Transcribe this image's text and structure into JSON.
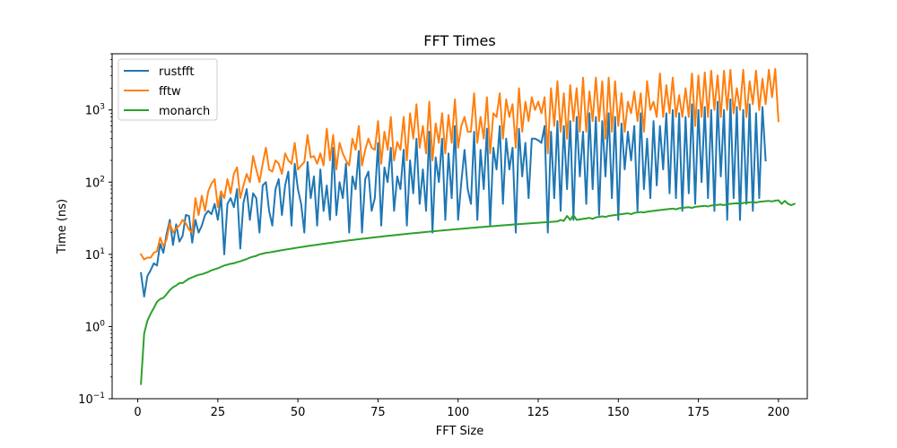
{
  "chart_data": {
    "type": "line",
    "title": "FFT Times",
    "xlabel": "FFT Size",
    "ylabel": "Time (ns)",
    "yscale": "log",
    "xlim": [
      -8,
      209
    ],
    "ylim": [
      0.1,
      6000
    ],
    "xticks": [
      0,
      25,
      50,
      75,
      100,
      125,
      150,
      175,
      200
    ],
    "yticks": [
      {
        "value": 0.1,
        "base": "10",
        "exp": "−1"
      },
      {
        "value": 1,
        "base": "10",
        "exp": "0"
      },
      {
        "value": 10,
        "base": "10",
        "exp": "1"
      },
      {
        "value": 100,
        "base": "10",
        "exp": "2"
      },
      {
        "value": 1000,
        "base": "10",
        "exp": "3"
      }
    ],
    "grid": false,
    "legend_position": "upper-left",
    "x_start": 1,
    "x_step": 1,
    "series": [
      {
        "name": "rustfft",
        "color": "#1f77b4",
        "values": [
          5.5,
          2.6,
          5.0,
          6.0,
          7.5,
          7.0,
          14.0,
          10.5,
          19.0,
          30.0,
          13.5,
          26.0,
          15.0,
          18.0,
          35.0,
          34.0,
          14.5,
          30.0,
          20.0,
          25.0,
          35.0,
          40.0,
          36.0,
          50.0,
          30.0,
          65.0,
          10.0,
          50.0,
          60.0,
          45.0,
          80.0,
          12.0,
          52.0,
          80.0,
          30.0,
          70.0,
          60.0,
          20.0,
          90.0,
          100.0,
          40.0,
          25.0,
          80.0,
          110.0,
          35.0,
          90.0,
          140.0,
          25.0,
          180.0,
          80.0,
          50.0,
          20.0,
          190.0,
          60.0,
          120.0,
          25.0,
          150.0,
          40.0,
          90.0,
          30.0,
          300.0,
          35.0,
          100.0,
          60.0,
          180.0,
          20.0,
          120.0,
          80.0,
          270.0,
          20.0,
          110.0,
          140.0,
          40.0,
          60.0,
          350.0,
          25.0,
          160.0,
          100.0,
          300.0,
          40.0,
          120.0,
          80.0,
          280.0,
          25.0,
          200.0,
          70.0,
          400.0,
          50.0,
          150.0,
          40.0,
          500.0,
          20.0,
          220.0,
          100.0,
          400.0,
          30.0,
          250.0,
          60.0,
          600.0,
          30.0,
          100.0,
          280.0,
          80.0,
          50.0,
          500.0,
          30.0,
          280.0,
          80.0,
          550.0,
          25.0,
          300.0,
          150.0,
          600.0,
          50.0,
          400.0,
          150.0,
          300.0,
          20.0,
          550.0,
          120.0,
          350.0,
          60.0,
          400.0,
          400.0,
          380.0,
          350.0,
          600.0,
          20.0,
          500.0,
          60.0,
          700.0,
          40.0,
          600.0,
          80.0,
          700.0,
          30.0,
          800.0,
          120.0,
          500.0,
          50.0,
          900.0,
          80.0,
          800.0,
          35.0,
          700.0,
          120.0,
          900.0,
          60.0,
          800.0,
          30.0,
          650.0,
          150.0,
          500.0,
          200.0,
          600.0,
          40.0,
          900.0,
          80.0,
          400.0,
          60.0,
          700.0,
          90.0,
          600.0,
          150.0,
          900.0,
          70.0,
          1000.0,
          60.0,
          900.0,
          40.0,
          800.0,
          70.0,
          1200.0,
          50.0,
          1000.0,
          100.0,
          1100.0,
          60.0,
          1000.0,
          40.0,
          1300.0,
          120.0,
          1000.0,
          30.0,
          1400.0,
          60.0,
          1100.0,
          30.0,
          1000.0,
          50.0,
          1200.0,
          40.0,
          900.0,
          60.0,
          1100.0,
          200.0
        ]
      },
      {
        "name": "fftw",
        "color": "#ff7f0e",
        "values": [
          10.0,
          8.5,
          9.0,
          9.0,
          10.5,
          11.0,
          17.0,
          13.0,
          16.0,
          27.0,
          20.0,
          23.0,
          25.0,
          30.0,
          27.0,
          22.0,
          20.0,
          60.0,
          35.0,
          65.0,
          40.0,
          75.0,
          95.0,
          110.0,
          45.0,
          75.0,
          60.0,
          110.0,
          70.0,
          130.0,
          160.0,
          60.0,
          90.0,
          130.0,
          100.0,
          230.0,
          150.0,
          100.0,
          180.0,
          300.0,
          150.0,
          140.0,
          200.0,
          180.0,
          130.0,
          250.0,
          200.0,
          180.0,
          350.0,
          150.0,
          170.0,
          190.0,
          450.0,
          220.0,
          230.0,
          180.0,
          250.0,
          170.0,
          550.0,
          200.0,
          450.0,
          150.0,
          350.0,
          250.0,
          200.0,
          170.0,
          400.0,
          280.0,
          600.0,
          170.0,
          280.0,
          400.0,
          300.0,
          280.0,
          700.0,
          180.0,
          500.0,
          280.0,
          800.0,
          200.0,
          360.0,
          280.0,
          800.0,
          200.0,
          900.0,
          400.0,
          1200.0,
          300.0,
          600.0,
          250.0,
          1300.0,
          200.0,
          650.0,
          350.0,
          900.0,
          250.0,
          850.0,
          350.0,
          1400.0,
          300.0,
          600.0,
          800.0,
          500.0,
          500.0,
          1700.0,
          350.0,
          800.0,
          400.0,
          1500.0,
          250.0,
          900.0,
          800.0,
          1700.0,
          400.0,
          1400.0,
          800.0,
          1200.0,
          300.0,
          2000.0,
          500.0,
          1300.0,
          700.0,
          1500.0,
          1000.0,
          1300.0,
          900.0,
          1500.0,
          250.0,
          2000.0,
          600.0,
          2500.0,
          500.0,
          1700.0,
          400.0,
          2200.0,
          700.0,
          2000.0,
          500.0,
          2800.0,
          500.0,
          1800.0,
          700.0,
          2800.0,
          700.0,
          2500.0,
          400.0,
          2800.0,
          500.0,
          2500.0,
          600.0,
          1700.0,
          500.0,
          1300.0,
          900.0,
          1800.0,
          700.0,
          1700.0,
          500.0,
          2500.0,
          1000.0,
          1300.0,
          800.0,
          3200.0,
          800.0,
          2200.0,
          900.0,
          2800.0,
          800.0,
          1600.0,
          800.0,
          2000.0,
          800.0,
          3200.0,
          600.0,
          3000.0,
          800.0,
          3300.0,
          800.0,
          3500.0,
          1000.0,
          3000.0,
          800.0,
          3500.0,
          1000.0,
          3600.0,
          900.0,
          2000.0,
          1000.0,
          3600.0,
          800.0,
          2500.0,
          1200.0,
          3500.0,
          1000.0,
          2700.0,
          1200.0,
          3600.0,
          1500.0,
          3700.0,
          700.0
        ]
      },
      {
        "name": "monarch",
        "color": "#2ca02c",
        "values": [
          0.16,
          0.8,
          1.2,
          1.5,
          1.8,
          2.2,
          2.4,
          2.5,
          2.8,
          3.2,
          3.5,
          3.7,
          4.0,
          4.0,
          4.3,
          4.6,
          4.8,
          5.0,
          5.2,
          5.3,
          5.5,
          5.7,
          6.0,
          6.2,
          6.4,
          6.7,
          7.0,
          7.2,
          7.4,
          7.5,
          7.8,
          8.0,
          8.3,
          8.6,
          9.0,
          9.3,
          9.5,
          10.0,
          10.2,
          10.5,
          10.6,
          10.8,
          11.0,
          11.2,
          11.4,
          11.6,
          11.8,
          12.0,
          12.2,
          12.4,
          12.6,
          12.8,
          13.0,
          13.2,
          13.4,
          13.6,
          13.8,
          14.0,
          14.2,
          14.4,
          14.6,
          14.8,
          15.0,
          15.2,
          15.4,
          15.6,
          15.8,
          16.0,
          16.2,
          16.4,
          16.6,
          16.8,
          17.0,
          17.2,
          17.4,
          17.6,
          17.8,
          18.0,
          18.2,
          18.4,
          18.6,
          18.8,
          19.0,
          19.2,
          19.4,
          19.6,
          19.8,
          20.0,
          20.2,
          20.4,
          20.6,
          20.8,
          21.0,
          21.2,
          21.4,
          21.6,
          21.8,
          22.0,
          22.2,
          22.4,
          22.6,
          22.8,
          23.0,
          23.2,
          23.4,
          23.6,
          23.8,
          24.0,
          24.2,
          24.4,
          24.6,
          24.8,
          25.0,
          25.2,
          25.4,
          25.6,
          25.8,
          26.0,
          26.2,
          26.4,
          26.6,
          26.8,
          27.0,
          27.2,
          27.4,
          27.6,
          27.8,
          28.0,
          28.2,
          28.4,
          28.6,
          30.0,
          29.0,
          34.0,
          30.0,
          35.0,
          30.0,
          30.5,
          31.0,
          31.5,
          32.0,
          31.0,
          32.5,
          33.0,
          33.5,
          33.0,
          34.0,
          34.5,
          35.0,
          35.5,
          36.0,
          36.5,
          37.0,
          36.0,
          37.5,
          38.0,
          38.5,
          38.0,
          39.0,
          39.5,
          40.0,
          40.5,
          41.0,
          41.5,
          42.0,
          42.5,
          43.0,
          42.0,
          43.5,
          44.0,
          44.5,
          45.0,
          44.0,
          45.5,
          46.0,
          46.5,
          47.0,
          46.0,
          47.5,
          48.0,
          48.5,
          49.0,
          48.0,
          49.5,
          50.0,
          50.5,
          51.0,
          50.0,
          51.5,
          52.0,
          52.5,
          53.0,
          52.0,
          53.5,
          54.0,
          54.5,
          55.0,
          54.0,
          55.5,
          56.0,
          50.0,
          55.0,
          50.0,
          48.0,
          50.0
        ]
      }
    ]
  }
}
